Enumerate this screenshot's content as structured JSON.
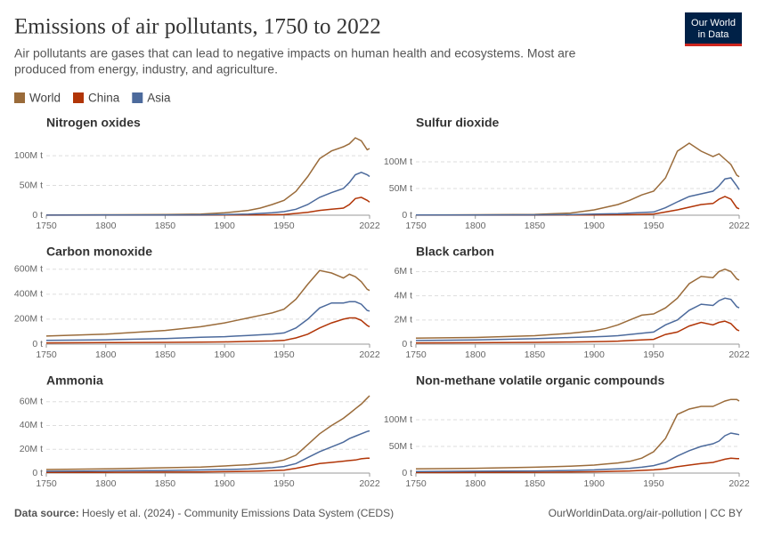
{
  "header": {
    "title": "Emissions of air pollutants, 1750 to 2022",
    "subtitle_lines": [
      "Air pollutants are gases that can lead to negative impacts on human health and ecosystems. Most are",
      "produced from energy, industry, and agriculture."
    ],
    "logo_lines": [
      "Our World",
      "in Data"
    ]
  },
  "legend": [
    {
      "name": "World",
      "color": "#9a6b3a"
    },
    {
      "name": "China",
      "color": "#b13507"
    },
    {
      "name": "Asia",
      "color": "#4c6a9c"
    }
  ],
  "chart_data": [
    {
      "type": "line",
      "title": "Nitrogen oxides",
      "x": [
        1750,
        1800,
        1850,
        1880,
        1900,
        1910,
        1920,
        1930,
        1940,
        1950,
        1960,
        1970,
        1980,
        1990,
        2000,
        2005,
        2010,
        2015,
        2020,
        2022
      ],
      "xlim": [
        1750,
        2022
      ],
      "xticks": [
        1750,
        1800,
        1850,
        1900,
        1950,
        2022
      ],
      "ylim": [
        0,
        130000000.0
      ],
      "yticks": [
        {
          "value": 0,
          "label": "0 t"
        },
        {
          "value": 50000000.0,
          "label": "50M t"
        },
        {
          "value": 100000000.0,
          "label": "100M t"
        }
      ],
      "grid": true,
      "series": [
        {
          "color": "#9a6b3a",
          "values": [
            500000.0,
            700000.0,
            1000000.0,
            2000000.0,
            4000000.0,
            6000000.0,
            8000000.0,
            12000000.0,
            18000000.0,
            25000000.0,
            40000000.0,
            65000000.0,
            95000000.0,
            108000000.0,
            115000000.0,
            120000000.0,
            130000000.0,
            125000000.0,
            110000000.0,
            112000000.0
          ]
        },
        {
          "color": "#b13507",
          "values": [
            100000.0,
            100000.0,
            200000.0,
            200000.0,
            300000.0,
            400000.0,
            500000.0,
            600000.0,
            800000.0,
            1000000.0,
            3000000.0,
            5000000.0,
            8000000.0,
            10000000.0,
            12000000.0,
            18000000.0,
            28000000.0,
            30000000.0,
            25000000.0,
            22000000.0
          ]
        },
        {
          "color": "#4c6a9c",
          "values": [
            200000.0,
            300000.0,
            400000.0,
            600000.0,
            1000000.0,
            1500000.0,
            2000000.0,
            3000000.0,
            4000000.0,
            6000000.0,
            10000000.0,
            18000000.0,
            30000000.0,
            38000000.0,
            45000000.0,
            55000000.0,
            68000000.0,
            72000000.0,
            68000000.0,
            65000000.0
          ]
        }
      ]
    },
    {
      "type": "line",
      "title": "Sulfur dioxide",
      "x": [
        1750,
        1800,
        1850,
        1880,
        1900,
        1910,
        1920,
        1930,
        1940,
        1950,
        1960,
        1970,
        1980,
        1990,
        2000,
        2005,
        2010,
        2015,
        2020,
        2022
      ],
      "xlim": [
        1750,
        2022
      ],
      "xticks": [
        1750,
        1800,
        1850,
        1900,
        1950,
        2022
      ],
      "ylim": [
        0,
        145000000.0
      ],
      "yticks": [
        {
          "value": 0,
          "label": "0 t"
        },
        {
          "value": 50000000.0,
          "label": "50M t"
        },
        {
          "value": 100000000.0,
          "label": "100M t"
        }
      ],
      "grid": true,
      "series": [
        {
          "color": "#9a6b3a",
          "values": [
            500000.0,
            800000.0,
            1500000.0,
            4000000.0,
            10000000.0,
            15000000.0,
            20000000.0,
            28000000.0,
            38000000.0,
            45000000.0,
            70000000.0,
            120000000.0,
            135000000.0,
            120000000.0,
            110000000.0,
            115000000.0,
            105000000.0,
            95000000.0,
            75000000.0,
            72000000.0
          ]
        },
        {
          "color": "#b13507",
          "values": [
            100000.0,
            100000.0,
            200000.0,
            300000.0,
            500000.0,
            600000.0,
            800000.0,
            1000000.0,
            1500000.0,
            2000000.0,
            6000000.0,
            10000000.0,
            15000000.0,
            20000000.0,
            22000000.0,
            30000000.0,
            35000000.0,
            30000000.0,
            14000000.0,
            12000000.0
          ]
        },
        {
          "color": "#4c6a9c",
          "values": [
            300000.0,
            400000.0,
            600000.0,
            1000000.0,
            2000000.0,
            2500000.0,
            3000000.0,
            4000000.0,
            5000000.0,
            6000000.0,
            14000000.0,
            25000000.0,
            35000000.0,
            40000000.0,
            45000000.0,
            55000000.0,
            68000000.0,
            70000000.0,
            55000000.0,
            48000000.0
          ]
        }
      ]
    },
    {
      "type": "line",
      "title": "Carbon monoxide",
      "x": [
        1750,
        1800,
        1850,
        1880,
        1900,
        1910,
        1920,
        1930,
        1940,
        1950,
        1960,
        1970,
        1980,
        1990,
        2000,
        2005,
        2010,
        2015,
        2020,
        2022
      ],
      "xlim": [
        1750,
        2022
      ],
      "xticks": [
        1750,
        1800,
        1850,
        1900,
        1950,
        2022
      ],
      "ylim": [
        0,
        620000000.0
      ],
      "yticks": [
        {
          "value": 0,
          "label": "0 t"
        },
        {
          "value": 200000000.0,
          "label": "200M t"
        },
        {
          "value": 400000000.0,
          "label": "400M t"
        },
        {
          "value": 600000000.0,
          "label": "600M t"
        }
      ],
      "grid": true,
      "series": [
        {
          "color": "#9a6b3a",
          "values": [
            65000000.0,
            80000000.0,
            110000000.0,
            140000000.0,
            170000000.0,
            190000000.0,
            210000000.0,
            230000000.0,
            250000000.0,
            280000000.0,
            360000000.0,
            480000000.0,
            590000000.0,
            570000000.0,
            530000000.0,
            560000000.0,
            540000000.0,
            500000000.0,
            440000000.0,
            430000000.0
          ]
        },
        {
          "color": "#b13507",
          "values": [
            10000000.0,
            12000000.0,
            14000000.0,
            16000000.0,
            18000000.0,
            20000000.0,
            22000000.0,
            24000000.0,
            26000000.0,
            30000000.0,
            50000000.0,
            80000000.0,
            130000000.0,
            170000000.0,
            200000000.0,
            210000000.0,
            210000000.0,
            190000000.0,
            150000000.0,
            140000000.0
          ]
        },
        {
          "color": "#4c6a9c",
          "values": [
            30000000.0,
            35000000.0,
            45000000.0,
            55000000.0,
            60000000.0,
            65000000.0,
            70000000.0,
            75000000.0,
            80000000.0,
            90000000.0,
            130000000.0,
            200000000.0,
            290000000.0,
            330000000.0,
            330000000.0,
            340000000.0,
            340000000.0,
            320000000.0,
            270000000.0,
            265000000.0
          ]
        }
      ]
    },
    {
      "type": "line",
      "title": "Black carbon",
      "x": [
        1750,
        1800,
        1850,
        1880,
        1900,
        1910,
        1920,
        1930,
        1940,
        1950,
        1960,
        1970,
        1980,
        1990,
        2000,
        2005,
        2010,
        2015,
        2020,
        2022
      ],
      "xlim": [
        1750,
        2022
      ],
      "xticks": [
        1750,
        1800,
        1850,
        1900,
        1950,
        2022
      ],
      "ylim": [
        0,
        6400000.0
      ],
      "yticks": [
        {
          "value": 0,
          "label": "0 t"
        },
        {
          "value": 2000000.0,
          "label": "2M t"
        },
        {
          "value": 4000000.0,
          "label": "4M t"
        },
        {
          "value": 6000000.0,
          "label": "6M t"
        }
      ],
      "grid": true,
      "series": [
        {
          "color": "#9a6b3a",
          "values": [
            500000.0,
            550000.0,
            700000.0,
            900000.0,
            1100000.0,
            1300000.0,
            1600000.0,
            2000000.0,
            2400000.0,
            2500000.0,
            3000000.0,
            3800000.0,
            5000000.0,
            5600000.0,
            5500000.0,
            6000000.0,
            6200000.0,
            6000000.0,
            5400000.0,
            5300000.0
          ]
        },
        {
          "color": "#b13507",
          "values": [
            100000.0,
            120000.0,
            150000.0,
            180000.0,
            200000.0,
            220000.0,
            250000.0,
            300000.0,
            350000.0,
            400000.0,
            800000.0,
            1000000.0,
            1500000.0,
            1800000.0,
            1600000.0,
            1800000.0,
            1900000.0,
            1700000.0,
            1200000.0,
            1100000.0
          ]
        },
        {
          "color": "#4c6a9c",
          "values": [
            300000.0,
            350000.0,
            450000.0,
            550000.0,
            600000.0,
            650000.0,
            700000.0,
            800000.0,
            900000.0,
            1000000.0,
            1600000.0,
            2000000.0,
            2800000.0,
            3300000.0,
            3200000.0,
            3600000.0,
            3800000.0,
            3700000.0,
            3100000.0,
            3000000.0
          ]
        }
      ]
    },
    {
      "type": "line",
      "title": "Ammonia",
      "x": [
        1750,
        1800,
        1850,
        1880,
        1900,
        1910,
        1920,
        1930,
        1940,
        1950,
        1960,
        1970,
        1980,
        1990,
        2000,
        2005,
        2010,
        2015,
        2020,
        2022
      ],
      "xlim": [
        1750,
        2022
      ],
      "xticks": [
        1750,
        1800,
        1850,
        1900,
        1950,
        2022
      ],
      "ylim": [
        0,
        65000000.0
      ],
      "yticks": [
        {
          "value": 0,
          "label": "0 t"
        },
        {
          "value": 20000000.0,
          "label": "20M t"
        },
        {
          "value": 40000000.0,
          "label": "40M t"
        },
        {
          "value": 60000000.0,
          "label": "60M t"
        }
      ],
      "grid": true,
      "series": [
        {
          "color": "#9a6b3a",
          "values": [
            3000000.0,
            3500000.0,
            4500000.0,
            5000000.0,
            6000000.0,
            6500000.0,
            7000000.0,
            8000000.0,
            9000000.0,
            11000000.0,
            15000000.0,
            24000000.0,
            33000000.0,
            40000000.0,
            46000000.0,
            50000000.0,
            54000000.0,
            58000000.0,
            63000000.0,
            65000000.0
          ]
        },
        {
          "color": "#b13507",
          "values": [
            500000.0,
            600000.0,
            800000.0,
            1000000.0,
            1200000.0,
            1300000.0,
            1500000.0,
            1700000.0,
            2000000.0,
            2500000.0,
            4000000.0,
            6000000.0,
            8000000.0,
            9000000.0,
            10000000.0,
            10500000.0,
            11000000.0,
            12000000.0,
            12500000.0,
            12500000.0
          ]
        },
        {
          "color": "#4c6a9c",
          "values": [
            1500000.0,
            1800000.0,
            2200000.0,
            2600000.0,
            3000000.0,
            3200000.0,
            3500000.0,
            4000000.0,
            4500000.0,
            5500000.0,
            8000000.0,
            13000000.0,
            18000000.0,
            22000000.0,
            26000000.0,
            29000000.0,
            31000000.0,
            33000000.0,
            35000000.0,
            35500000.0
          ]
        }
      ]
    },
    {
      "type": "line",
      "title": "Non-methane volatile organic compounds",
      "x": [
        1750,
        1800,
        1850,
        1880,
        1900,
        1910,
        1920,
        1930,
        1940,
        1950,
        1960,
        1970,
        1980,
        1990,
        2000,
        2005,
        2010,
        2015,
        2020,
        2022
      ],
      "xlim": [
        1750,
        2022
      ],
      "xticks": [
        1750,
        1800,
        1850,
        1900,
        1950,
        2022
      ],
      "ylim": [
        0,
        145000000.0
      ],
      "yticks": [
        {
          "value": 0,
          "label": "0 t"
        },
        {
          "value": 50000000.0,
          "label": "50M t"
        },
        {
          "value": 100000000.0,
          "label": "100M t"
        }
      ],
      "grid": true,
      "series": [
        {
          "color": "#9a6b3a",
          "values": [
            8000000.0,
            9000000.0,
            11000000.0,
            13000000.0,
            15000000.0,
            17000000.0,
            19000000.0,
            22000000.0,
            28000000.0,
            40000000.0,
            65000000.0,
            110000000.0,
            120000000.0,
            125000000.0,
            125000000.0,
            130000000.0,
            135000000.0,
            138000000.0,
            138000000.0,
            135000000.0
          ]
        },
        {
          "color": "#b13507",
          "values": [
            1000000.0,
            1200000.0,
            1500000.0,
            2000000.0,
            2500000.0,
            3000000.0,
            3500000.0,
            4000000.0,
            5000000.0,
            6000000.0,
            8000000.0,
            12000000.0,
            15000000.0,
            18000000.0,
            20000000.0,
            23000000.0,
            26000000.0,
            28000000.0,
            27000000.0,
            27000000.0
          ]
        },
        {
          "color": "#4c6a9c",
          "values": [
            3000000.0,
            3500000.0,
            4000000.0,
            5000000.0,
            6000000.0,
            7000000.0,
            8000000.0,
            9000000.0,
            11000000.0,
            14000000.0,
            20000000.0,
            32000000.0,
            42000000.0,
            50000000.0,
            55000000.0,
            60000000.0,
            70000000.0,
            75000000.0,
            73000000.0,
            72000000.0
          ]
        }
      ]
    }
  ],
  "footer": {
    "source_label": "Data source:",
    "source": "Hoesly et al. (2024) - Community Emissions Data System (CEDS)",
    "credit": "OurWorldinData.org/air-pollution | CC BY"
  }
}
